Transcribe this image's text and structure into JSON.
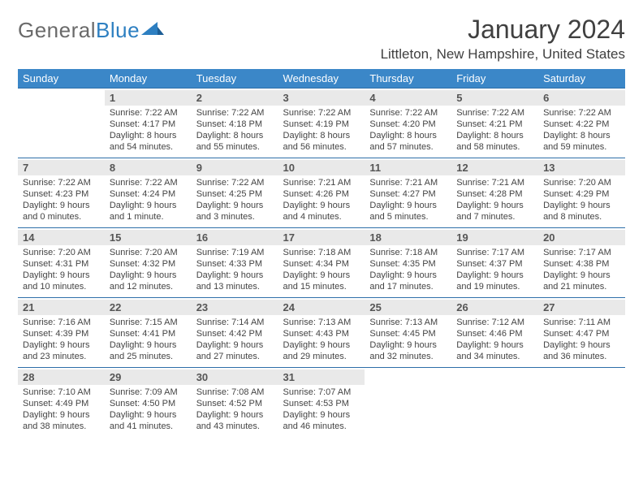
{
  "logo": {
    "word1": "General",
    "word2": "Blue"
  },
  "title": "January 2024",
  "location": "Littleton, New Hampshire, United States",
  "style": {
    "header_bg": "#3b87c8",
    "header_text": "#ffffff",
    "row_border": "#2d6ea8",
    "daynum_bg": "#e9e9e9",
    "daynum_color": "#555555",
    "text_color": "#444444",
    "title_color": "#404040",
    "logo_gray": "#6a6a6a",
    "logo_blue": "#2d7fc1",
    "page_bg": "#ffffff",
    "title_fontsize": 32,
    "location_fontsize": 17,
    "header_fontsize": 13,
    "daynum_fontsize": 13,
    "detail_fontsize": 11
  },
  "weekdays": [
    "Sunday",
    "Monday",
    "Tuesday",
    "Wednesday",
    "Thursday",
    "Friday",
    "Saturday"
  ],
  "weeks": [
    [
      {
        "n": "",
        "sr": "",
        "ss": "",
        "dl": ""
      },
      {
        "n": "1",
        "sr": "Sunrise: 7:22 AM",
        "ss": "Sunset: 4:17 PM",
        "dl": "Daylight: 8 hours and 54 minutes."
      },
      {
        "n": "2",
        "sr": "Sunrise: 7:22 AM",
        "ss": "Sunset: 4:18 PM",
        "dl": "Daylight: 8 hours and 55 minutes."
      },
      {
        "n": "3",
        "sr": "Sunrise: 7:22 AM",
        "ss": "Sunset: 4:19 PM",
        "dl": "Daylight: 8 hours and 56 minutes."
      },
      {
        "n": "4",
        "sr": "Sunrise: 7:22 AM",
        "ss": "Sunset: 4:20 PM",
        "dl": "Daylight: 8 hours and 57 minutes."
      },
      {
        "n": "5",
        "sr": "Sunrise: 7:22 AM",
        "ss": "Sunset: 4:21 PM",
        "dl": "Daylight: 8 hours and 58 minutes."
      },
      {
        "n": "6",
        "sr": "Sunrise: 7:22 AM",
        "ss": "Sunset: 4:22 PM",
        "dl": "Daylight: 8 hours and 59 minutes."
      }
    ],
    [
      {
        "n": "7",
        "sr": "Sunrise: 7:22 AM",
        "ss": "Sunset: 4:23 PM",
        "dl": "Daylight: 9 hours and 0 minutes."
      },
      {
        "n": "8",
        "sr": "Sunrise: 7:22 AM",
        "ss": "Sunset: 4:24 PM",
        "dl": "Daylight: 9 hours and 1 minute."
      },
      {
        "n": "9",
        "sr": "Sunrise: 7:22 AM",
        "ss": "Sunset: 4:25 PM",
        "dl": "Daylight: 9 hours and 3 minutes."
      },
      {
        "n": "10",
        "sr": "Sunrise: 7:21 AM",
        "ss": "Sunset: 4:26 PM",
        "dl": "Daylight: 9 hours and 4 minutes."
      },
      {
        "n": "11",
        "sr": "Sunrise: 7:21 AM",
        "ss": "Sunset: 4:27 PM",
        "dl": "Daylight: 9 hours and 5 minutes."
      },
      {
        "n": "12",
        "sr": "Sunrise: 7:21 AM",
        "ss": "Sunset: 4:28 PM",
        "dl": "Daylight: 9 hours and 7 minutes."
      },
      {
        "n": "13",
        "sr": "Sunrise: 7:20 AM",
        "ss": "Sunset: 4:29 PM",
        "dl": "Daylight: 9 hours and 8 minutes."
      }
    ],
    [
      {
        "n": "14",
        "sr": "Sunrise: 7:20 AM",
        "ss": "Sunset: 4:31 PM",
        "dl": "Daylight: 9 hours and 10 minutes."
      },
      {
        "n": "15",
        "sr": "Sunrise: 7:20 AM",
        "ss": "Sunset: 4:32 PM",
        "dl": "Daylight: 9 hours and 12 minutes."
      },
      {
        "n": "16",
        "sr": "Sunrise: 7:19 AM",
        "ss": "Sunset: 4:33 PM",
        "dl": "Daylight: 9 hours and 13 minutes."
      },
      {
        "n": "17",
        "sr": "Sunrise: 7:18 AM",
        "ss": "Sunset: 4:34 PM",
        "dl": "Daylight: 9 hours and 15 minutes."
      },
      {
        "n": "18",
        "sr": "Sunrise: 7:18 AM",
        "ss": "Sunset: 4:35 PM",
        "dl": "Daylight: 9 hours and 17 minutes."
      },
      {
        "n": "19",
        "sr": "Sunrise: 7:17 AM",
        "ss": "Sunset: 4:37 PM",
        "dl": "Daylight: 9 hours and 19 minutes."
      },
      {
        "n": "20",
        "sr": "Sunrise: 7:17 AM",
        "ss": "Sunset: 4:38 PM",
        "dl": "Daylight: 9 hours and 21 minutes."
      }
    ],
    [
      {
        "n": "21",
        "sr": "Sunrise: 7:16 AM",
        "ss": "Sunset: 4:39 PM",
        "dl": "Daylight: 9 hours and 23 minutes."
      },
      {
        "n": "22",
        "sr": "Sunrise: 7:15 AM",
        "ss": "Sunset: 4:41 PM",
        "dl": "Daylight: 9 hours and 25 minutes."
      },
      {
        "n": "23",
        "sr": "Sunrise: 7:14 AM",
        "ss": "Sunset: 4:42 PM",
        "dl": "Daylight: 9 hours and 27 minutes."
      },
      {
        "n": "24",
        "sr": "Sunrise: 7:13 AM",
        "ss": "Sunset: 4:43 PM",
        "dl": "Daylight: 9 hours and 29 minutes."
      },
      {
        "n": "25",
        "sr": "Sunrise: 7:13 AM",
        "ss": "Sunset: 4:45 PM",
        "dl": "Daylight: 9 hours and 32 minutes."
      },
      {
        "n": "26",
        "sr": "Sunrise: 7:12 AM",
        "ss": "Sunset: 4:46 PM",
        "dl": "Daylight: 9 hours and 34 minutes."
      },
      {
        "n": "27",
        "sr": "Sunrise: 7:11 AM",
        "ss": "Sunset: 4:47 PM",
        "dl": "Daylight: 9 hours and 36 minutes."
      }
    ],
    [
      {
        "n": "28",
        "sr": "Sunrise: 7:10 AM",
        "ss": "Sunset: 4:49 PM",
        "dl": "Daylight: 9 hours and 38 minutes."
      },
      {
        "n": "29",
        "sr": "Sunrise: 7:09 AM",
        "ss": "Sunset: 4:50 PM",
        "dl": "Daylight: 9 hours and 41 minutes."
      },
      {
        "n": "30",
        "sr": "Sunrise: 7:08 AM",
        "ss": "Sunset: 4:52 PM",
        "dl": "Daylight: 9 hours and 43 minutes."
      },
      {
        "n": "31",
        "sr": "Sunrise: 7:07 AM",
        "ss": "Sunset: 4:53 PM",
        "dl": "Daylight: 9 hours and 46 minutes."
      },
      {
        "n": "",
        "sr": "",
        "ss": "",
        "dl": ""
      },
      {
        "n": "",
        "sr": "",
        "ss": "",
        "dl": ""
      },
      {
        "n": "",
        "sr": "",
        "ss": "",
        "dl": ""
      }
    ]
  ]
}
